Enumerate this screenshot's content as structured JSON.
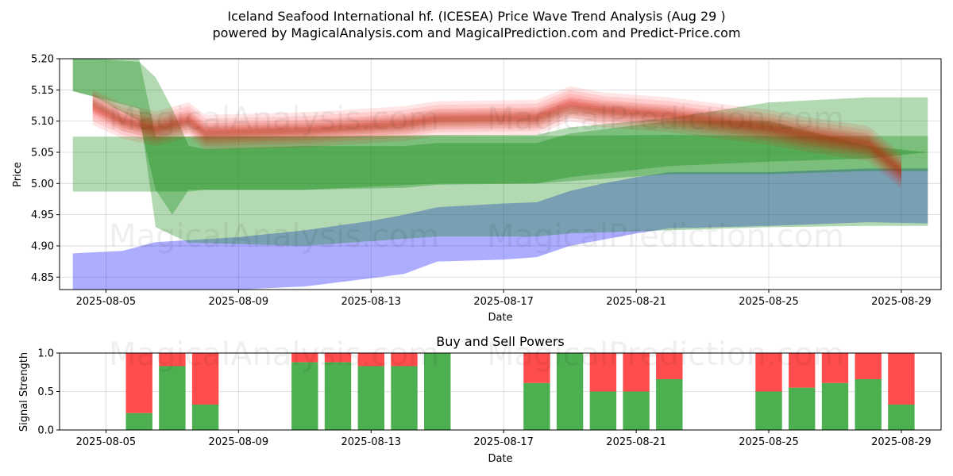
{
  "chart_data": [
    {
      "type": "area",
      "title": "Iceland Seafood International hf. (ICESEA) Price Wave Trend Analysis (Aug 29 )",
      "subtitle": "powered by MagicalAnalysis.com and MagicalPrediction.com and Predict-Price.com",
      "xlabel": "Date",
      "ylabel": "Price",
      "xlim": [
        "2025-08-03.6",
        "2025-08-30.2"
      ],
      "ylim": [
        4.83,
        5.2
      ],
      "x_ticks": [
        "2025-08-05",
        "2025-08-09",
        "2025-08-13",
        "2025-08-17",
        "2025-08-21",
        "2025-08-25",
        "2025-08-29"
      ],
      "y_ticks": [
        "4.85",
        "4.90",
        "4.95",
        "5.00",
        "5.05",
        "5.10",
        "5.15",
        "5.20"
      ],
      "grid": true,
      "series": [
        {
          "name": "blue band",
          "color": "#0000ff",
          "x": [
            4.0,
            5.5,
            6.5,
            9.0,
            11.0,
            13.0,
            14.0,
            15.0,
            17.0,
            18.0,
            19.0,
            20.0,
            21.0,
            22.0,
            25.0,
            28.0,
            29.8
          ],
          "upper": [
            4.888,
            4.892,
            4.906,
            4.914,
            4.925,
            4.94,
            4.95,
            4.962,
            4.968,
            4.97,
            4.988,
            5.0,
            5.01,
            5.018,
            5.018,
            5.024,
            5.024
          ],
          "lower": [
            4.83,
            4.83,
            4.83,
            4.83,
            4.835,
            4.848,
            4.855,
            4.875,
            4.878,
            4.882,
            4.9,
            4.91,
            4.92,
            4.928,
            4.932,
            4.938,
            4.936
          ]
        },
        {
          "name": "green band 1",
          "color": "#008000",
          "x": [
            4.0,
            7.5,
            8.0,
            11.0,
            15.0,
            18.0,
            22.0,
            25.0,
            28.0,
            29.8
          ],
          "upper": [
            5.075,
            5.075,
            5.076,
            5.076,
            5.076,
            5.076,
            5.078,
            5.076,
            5.076,
            5.076
          ],
          "lower": [
            4.987,
            4.987,
            4.99,
            4.99,
            5.0,
            5.0,
            5.015,
            5.015,
            5.02,
            5.02
          ]
        },
        {
          "name": "green band 2",
          "color": "#008000",
          "x": [
            4.0,
            6.0,
            6.5,
            7.5,
            11.0,
            15.0,
            18.0,
            19.0,
            22.0,
            25.0,
            28.0,
            29.8
          ],
          "upper": [
            5.2,
            5.2,
            5.075,
            5.075,
            5.075,
            5.078,
            5.078,
            5.09,
            5.105,
            5.13,
            5.138,
            5.138
          ],
          "lower": [
            5.148,
            5.12,
            4.93,
            4.905,
            4.9,
            4.915,
            4.915,
            4.92,
            4.925,
            4.93,
            4.932,
            4.932
          ]
        },
        {
          "name": "green band 3",
          "color": "#008000",
          "x": [
            4.0,
            4.6,
            6.0,
            6.5,
            7.0,
            7.5,
            8.0,
            11.0,
            14.0,
            15.0,
            18.0,
            19.0,
            22.0,
            25.0,
            28.0,
            29.8
          ],
          "upper": [
            5.2,
            5.2,
            5.195,
            5.17,
            5.12,
            5.06,
            5.055,
            5.06,
            5.06,
            5.065,
            5.065,
            5.08,
            5.1,
            5.1,
            5.06,
            5.05
          ],
          "lower": [
            5.148,
            5.14,
            5.1,
            4.99,
            4.95,
            4.99,
            4.99,
            4.99,
            4.993,
            4.998,
            5.0,
            5.01,
            5.028,
            5.035,
            5.04,
            5.05
          ]
        },
        {
          "name": "red wave",
          "color": "#ff0000",
          "x": [
            4.6,
            5.5,
            6.5,
            7.5,
            8.0,
            11.0,
            14.0,
            15.0,
            18.0,
            19.0,
            20.0,
            22.0,
            25.0,
            26.0,
            28.0,
            29.0
          ],
          "values": [
            5.122,
            5.1,
            5.088,
            5.102,
            5.082,
            5.086,
            5.096,
            5.104,
            5.106,
            5.128,
            5.118,
            5.11,
            5.09,
            5.08,
            5.064,
            5.02
          ]
        },
        {
          "name": "brown wave",
          "color": "#8b4513",
          "x": [
            4.6,
            5.5,
            6.5,
            7.5,
            8.0,
            11.0,
            14.0,
            15.0,
            18.0,
            19.0,
            20.0,
            22.0,
            25.0,
            26.0,
            28.0,
            29.0
          ],
          "values": [
            5.13,
            5.1,
            5.086,
            5.098,
            5.08,
            5.084,
            5.094,
            5.102,
            5.104,
            5.12,
            5.116,
            5.108,
            5.088,
            5.078,
            5.062,
            5.018
          ]
        }
      ]
    },
    {
      "type": "bar",
      "title": "Buy and Sell Powers",
      "xlabel": "Date",
      "ylabel": "Signal Strength",
      "ylim": [
        0,
        1.0
      ],
      "y_ticks": [
        "0.0",
        "0.5",
        "1.0"
      ],
      "x_ticks": [
        "2025-08-05",
        "2025-08-09",
        "2025-08-13",
        "2025-08-17",
        "2025-08-21",
        "2025-08-25",
        "2025-08-29"
      ],
      "colors": {
        "buy": "#4caf50",
        "sell": "#ff4d4d"
      },
      "categories": [
        "2025-08-06",
        "2025-08-07",
        "2025-08-08",
        "2025-08-11",
        "2025-08-12",
        "2025-08-13",
        "2025-08-14",
        "2025-08-15",
        "2025-08-18",
        "2025-08-19",
        "2025-08-20",
        "2025-08-21",
        "2025-08-22",
        "2025-08-25",
        "2025-08-26",
        "2025-08-27",
        "2025-08-28",
        "2025-08-29"
      ],
      "series": [
        {
          "name": "Buy",
          "values": [
            0.22,
            0.83,
            0.33,
            0.88,
            0.88,
            0.83,
            0.83,
            1.0,
            0.61,
            1.0,
            0.5,
            0.5,
            0.66,
            0.5,
            0.55,
            0.61,
            0.66,
            0.33
          ]
        },
        {
          "name": "Sell",
          "values": [
            0.78,
            0.17,
            0.67,
            0.12,
            0.12,
            0.17,
            0.17,
            0.0,
            0.39,
            0.0,
            0.5,
            0.5,
            0.34,
            0.5,
            0.45,
            0.39,
            0.34,
            0.67
          ]
        }
      ]
    }
  ],
  "watermarks": [
    "MagicalAnalysis.com",
    "MagicalPrediction.com"
  ]
}
